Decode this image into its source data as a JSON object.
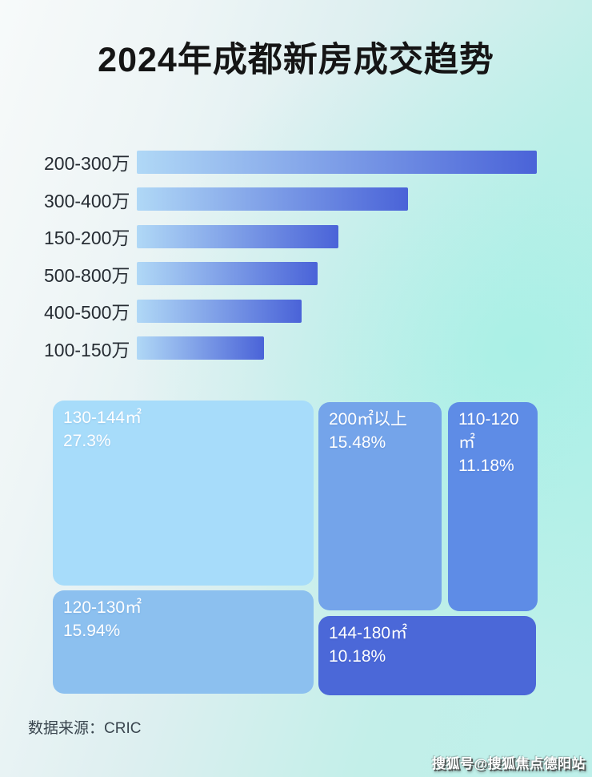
{
  "page": {
    "title": "2024年成都新房成交趋势"
  },
  "colors": {
    "bar_gradient_start": "#b0d8f6",
    "bar_gradient_end": "#4a63d8",
    "label_text": "#262c33",
    "cell_text": "#ffffff",
    "background_left": "#f7fafa",
    "background_right": "#bdf0ea"
  },
  "price_bars": {
    "rows": [
      {
        "label": "200-300万",
        "length_pct": 100
      },
      {
        "label": "300-400万",
        "length_pct": 67.8
      },
      {
        "label": "150-200万",
        "length_pct": 50.4
      },
      {
        "label": "500-800万",
        "length_pct": 45.1
      },
      {
        "label": "400-500万",
        "length_pct": 41.2
      },
      {
        "label": "100-150万",
        "length_pct": 31.8
      }
    ]
  },
  "treemap": {
    "cells": [
      {
        "label": "130-144㎡",
        "value": "27.3%",
        "color": "#a7dcfa"
      },
      {
        "label": "200㎡以上",
        "value": "15.48%",
        "color": "#74a4ea"
      },
      {
        "label": "110-120㎡",
        "value": "11.18%",
        "color": "#5e8ce6"
      },
      {
        "label": "120-130㎡",
        "value": "15.94%",
        "color": "#8cc0ef"
      },
      {
        "label": "144-180㎡",
        "value": "10.18%",
        "color": "#4b68d8"
      }
    ]
  },
  "footer": {
    "source": "数据来源：CRIC"
  },
  "watermark": {
    "text": "搜狐号@搜狐焦点德阳站"
  },
  "chart_data": [
    {
      "type": "bar",
      "orientation": "horizontal",
      "title": "2024年成都新房成交趋势",
      "categories": [
        "200-300万",
        "300-400万",
        "150-200万",
        "500-800万",
        "400-500万",
        "100-150万"
      ],
      "values_relative_pct": [
        100,
        67.8,
        50.4,
        45.1,
        41.2,
        31.8
      ],
      "value_labels_shown": false,
      "xlabel": "",
      "ylabel": "",
      "grid": false,
      "legend": "none",
      "note": "No numeric axis shown; bar lengths estimated relative to longest bar (200-300万 = 100)."
    },
    {
      "type": "treemap",
      "items": [
        {
          "label": "130-144㎡",
          "value_pct": 27.3
        },
        {
          "label": "200㎡以上",
          "value_pct": 15.48
        },
        {
          "label": "110-120㎡",
          "value_pct": 11.18
        },
        {
          "label": "120-130㎡",
          "value_pct": 15.94
        },
        {
          "label": "144-180㎡",
          "value_pct": 10.18
        }
      ],
      "legend": "none"
    }
  ]
}
